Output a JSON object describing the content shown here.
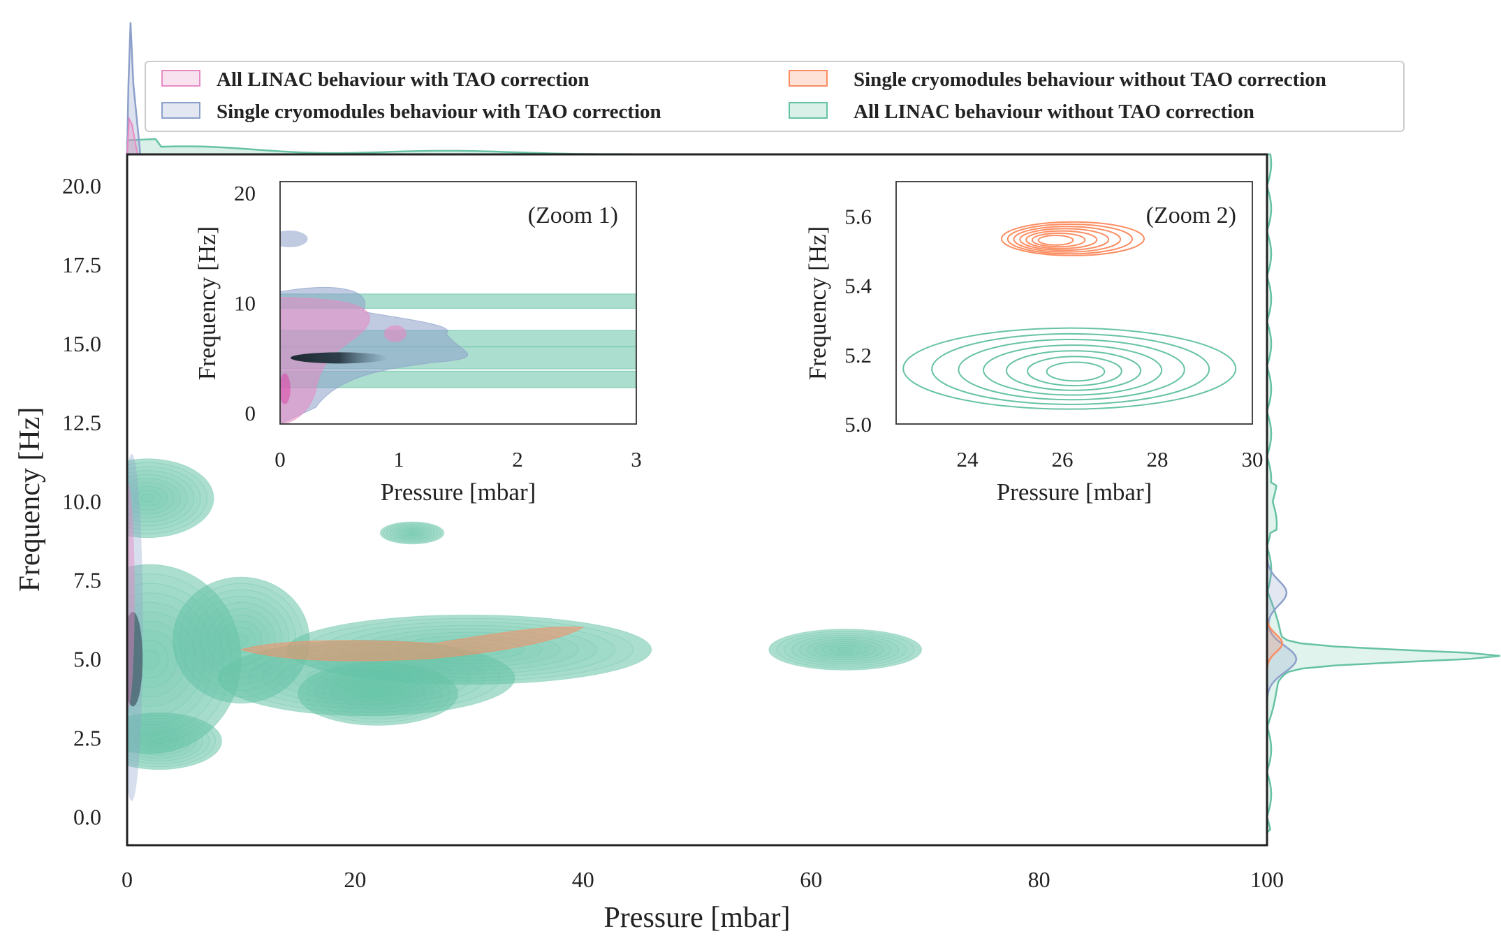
{
  "chart_data": {
    "type": "kde_joint_plot",
    "xlabel": "Pressure [mbar]",
    "ylabel": "Frequency [Hz]",
    "xlim": [
      0,
      100
    ],
    "ylim": [
      -0.9,
      21
    ],
    "xticks": [
      "0",
      "20",
      "40",
      "60",
      "80",
      "100"
    ],
    "yticks": [
      "0.0",
      "2.5",
      "5.0",
      "7.5",
      "10.0",
      "12.5",
      "15.0",
      "17.5",
      "20.0"
    ],
    "legend": {
      "position": "top",
      "entries": [
        {
          "label": "All LINAC behaviour with TAO correction",
          "color": "#e78ac3"
        },
        {
          "label": "Single cryomodules behaviour with TAO correction",
          "color": "#8da0cb"
        },
        {
          "label": "Single cryomodules behaviour without TAO correction",
          "color": "#fc8d62"
        },
        {
          "label": "All LINAC behaviour without TAO correction",
          "color": "#66c2a5"
        }
      ]
    },
    "series": [
      {
        "name": "All LINAC behaviour without TAO correction",
        "color": "#66c2a5",
        "density_regions": [
          {
            "cx": 1.8,
            "cy": 10.1,
            "rx": 5.8,
            "ry": 1.25
          },
          {
            "cx": 25,
            "cy": 9.0,
            "rx": 2.8,
            "ry": 0.35
          },
          {
            "cx": 63,
            "cy": 5.3,
            "rx": 6.7,
            "ry": 0.65
          },
          {
            "cx": 2.8,
            "cy": 2.4,
            "rx": 5.5,
            "ry": 0.9
          },
          {
            "cx": 22,
            "cy": 5.2,
            "rx": 24,
            "ry": 1.3
          }
        ]
      },
      {
        "name": "Single cryomodules behaviour without TAO correction",
        "color": "#fc8d62",
        "density_regions": [
          {
            "cx": 25,
            "cy": 5.5,
            "rx": 15,
            "ry": 0.45
          }
        ]
      },
      {
        "name": "Single cryomodules behaviour with TAO correction",
        "color": "#8da0cb",
        "density_regions": [
          {
            "cx": 0.3,
            "cy": 5.0,
            "rx": 1.0,
            "ry": 3.5
          }
        ]
      },
      {
        "name": "All LINAC behaviour with TAO correction",
        "color": "#e78ac3",
        "density_regions": [
          {
            "cx": 0.1,
            "cy": 7.0,
            "rx": 0.4,
            "ry": 3.5
          }
        ]
      }
    ],
    "marginal_x": {
      "peak_series": "Single cryomodules behaviour with TAO correction",
      "peak_x": 0.3
    },
    "marginal_y": {
      "peak_series": "All LINAC behaviour without TAO correction",
      "peak_y": 5.1
    },
    "insets": [
      {
        "name": "zoom1",
        "label": "(Zoom 1)",
        "xlabel": "Pressure [mbar]",
        "ylabel": "Frequency [Hz]",
        "xlim": [
          0,
          3
        ],
        "ylim": [
          -1,
          21
        ],
        "xticks": [
          "0",
          "1",
          "2",
          "3"
        ],
        "yticks": [
          "0",
          "10",
          "20"
        ],
        "green_bands": [
          [
            9.5,
            10.8
          ],
          [
            6.0,
            7.5
          ],
          [
            4.0,
            6.0
          ],
          [
            2.3,
            3.8
          ]
        ]
      },
      {
        "name": "zoom2",
        "label": "(Zoom 2)",
        "xlabel": "Pressure [mbar]",
        "ylabel": "Frequency [Hz]",
        "xlim": [
          22.5,
          30
        ],
        "ylim": [
          5.0,
          5.7
        ],
        "xticks": [
          "24",
          "26",
          "28",
          "30"
        ],
        "yticks": [
          "5.0",
          "5.2",
          "5.4",
          "5.6"
        ],
        "contours": [
          {
            "series": "Single cryomodules behaviour without TAO correction",
            "center": [
              25.8,
              5.53
            ],
            "levels": 7
          },
          {
            "series": "All LINAC behaviour without TAO correction",
            "center": [
              26.3,
              5.15
            ],
            "levels": 7
          }
        ]
      }
    ]
  }
}
